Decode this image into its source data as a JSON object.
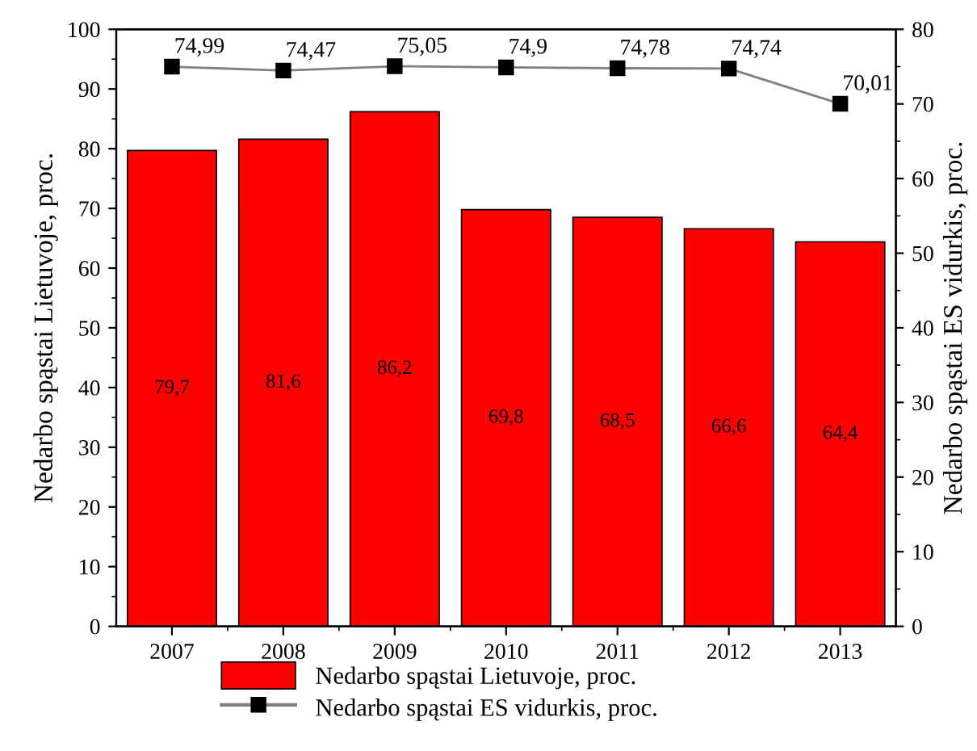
{
  "chart_data": {
    "type": "bar",
    "categories": [
      "2007",
      "2008",
      "2009",
      "2010",
      "2011",
      "2012",
      "2013"
    ],
    "ylabel": "Nedarbo spąstai Lietuvoje, proc.",
    "y2label": "Nedarbo spąstai ES vidurkis, proc.",
    "ylim": [
      0,
      100
    ],
    "yticks": [
      0,
      10,
      20,
      30,
      40,
      50,
      60,
      70,
      80,
      90,
      100
    ],
    "y2lim": [
      0,
      80
    ],
    "y2ticks": [
      0,
      10,
      20,
      30,
      40,
      50,
      60,
      70,
      80
    ],
    "legend": "bottom",
    "grid": false,
    "series": [
      {
        "name": "Nedarbo spąstai Lietuvoje, proc.",
        "color": "#ff0000",
        "values": [
          79.7,
          81.6,
          86.2,
          69.8,
          68.5,
          66.6,
          64.4
        ],
        "value_labels": [
          "79,7",
          "81,6",
          "86,2",
          "69,8",
          "68,5",
          "66,6",
          "64,4"
        ]
      },
      {
        "name": "Nedarbo spąstai ES vidurkis, proc.",
        "type": "line",
        "axis": "y2",
        "color": "#000000",
        "marker": "square",
        "line_style": "solid",
        "values": [
          74.99,
          74.47,
          75.05,
          74.9,
          74.78,
          74.74,
          70.01
        ],
        "value_labels": [
          "74,99",
          "74,47",
          "75,05",
          "74,9",
          "74,78",
          "74,74",
          "70,01"
        ]
      }
    ]
  }
}
